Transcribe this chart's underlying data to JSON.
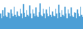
{
  "values": [
    4.5,
    3.2,
    5.5,
    3.8,
    6.2,
    4.0,
    3.5,
    5.0,
    4.8,
    3.2,
    5.8,
    4.5,
    3.8,
    6.5,
    4.2,
    3.5,
    5.2,
    4.0,
    3.8,
    6.0,
    4.5,
    3.2,
    7.2,
    4.8,
    3.5,
    5.5,
    4.2,
    3.8,
    6.8,
    4.5,
    3.2,
    5.8,
    4.5,
    3.8,
    6.2,
    4.0,
    3.5,
    5.0,
    7.5,
    4.2,
    3.8,
    6.0,
    4.5,
    3.2,
    5.8,
    4.5,
    3.8,
    6.5,
    4.2,
    3.5,
    5.2,
    4.0,
    3.8,
    6.0,
    4.5,
    3.2,
    7.0,
    4.8,
    3.5,
    5.5,
    4.2,
    3.8,
    6.5,
    4.5,
    3.2,
    5.8,
    4.5,
    3.8,
    6.2,
    4.0,
    3.5,
    5.0,
    4.8,
    3.2,
    5.8,
    4.5,
    3.8,
    6.5,
    4.2,
    3.5
  ],
  "bar_color": "#4d9fd6",
  "background_color": "#ffffff",
  "ylim_min": 0,
  "ylim_max": 8.5
}
